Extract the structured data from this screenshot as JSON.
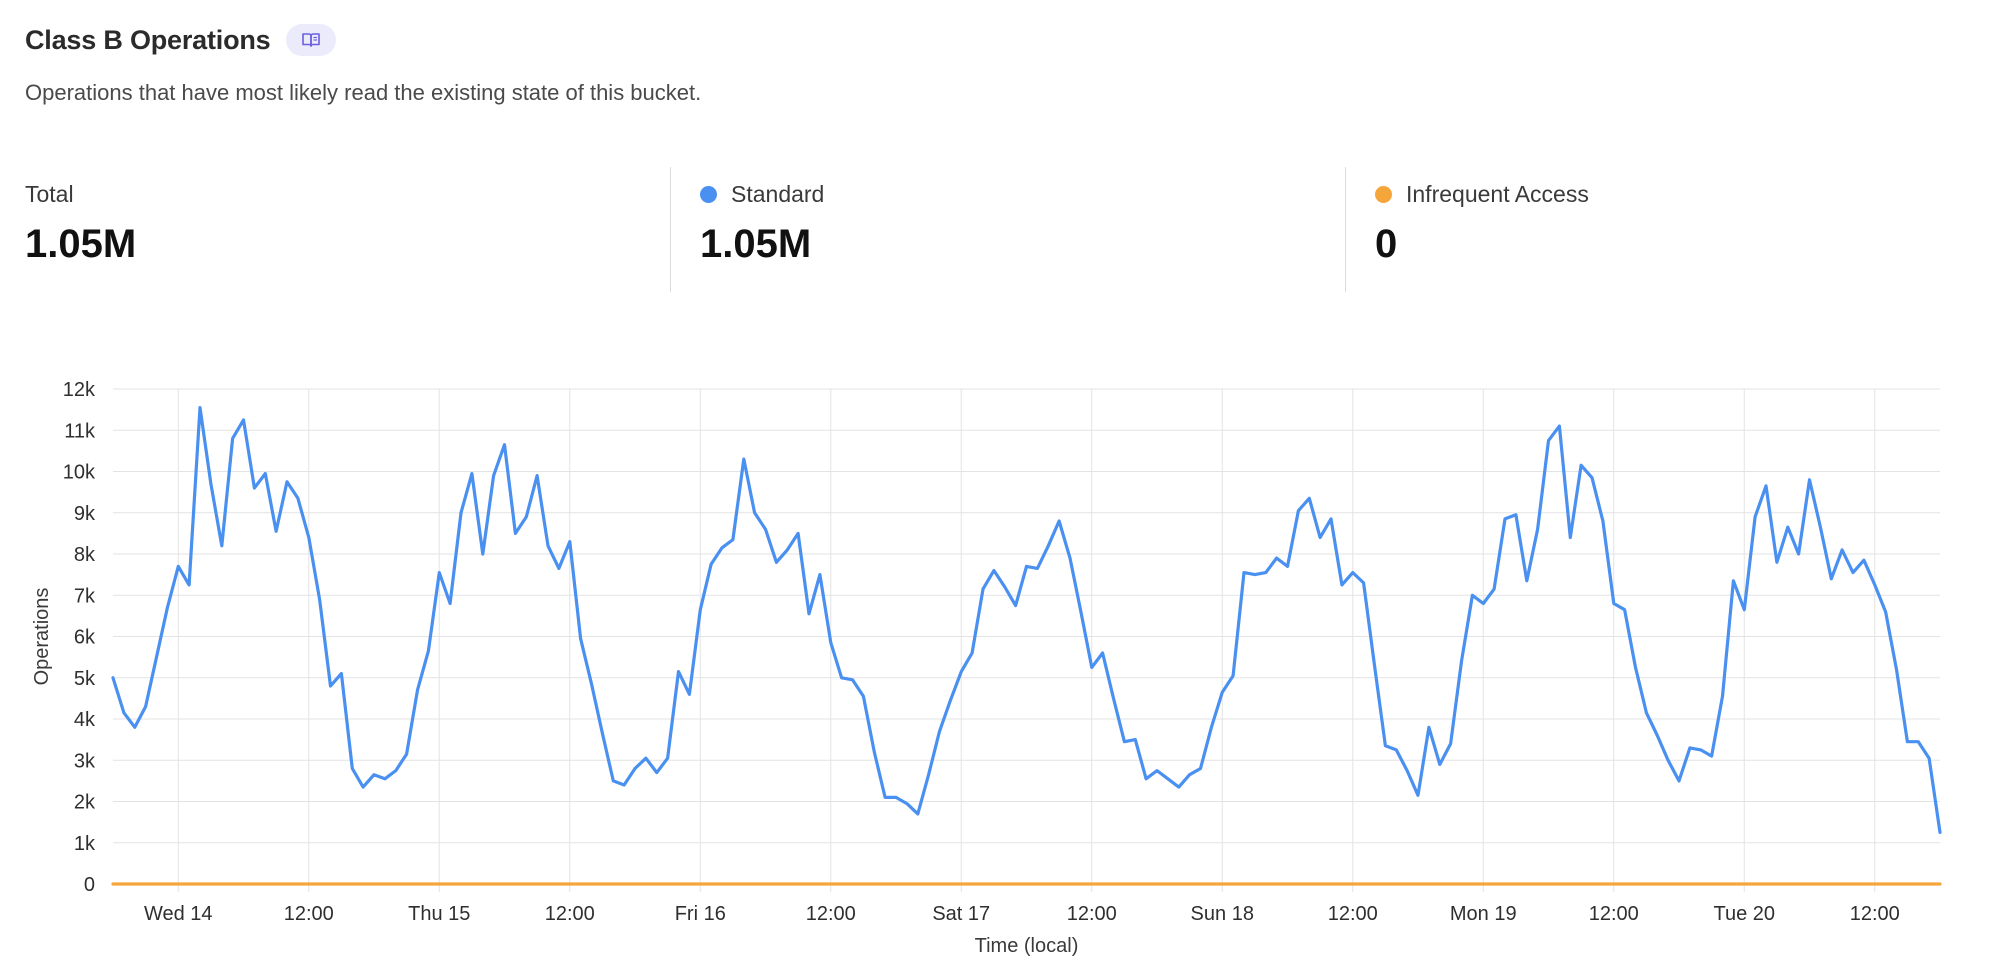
{
  "header": {
    "title": "Class B Operations",
    "docs_icon": "book-icon",
    "subtitle": "Operations that have most likely read the existing state of this bucket."
  },
  "stats": [
    {
      "label": "Total",
      "value": "1.05M",
      "color": ""
    },
    {
      "label": "Standard",
      "value": "1.05M",
      "color": "#4a90f0"
    },
    {
      "label": "Infrequent Access",
      "value": "0",
      "color": "#f5a63a"
    }
  ],
  "chart_data": {
    "type": "line",
    "xlabel": "Time (local)",
    "ylabel": "Operations",
    "ylim": [
      0,
      12000
    ],
    "y_ticks": [
      {
        "value": 0,
        "label": "0"
      },
      {
        "value": 1000,
        "label": "1k"
      },
      {
        "value": 2000,
        "label": "2k"
      },
      {
        "value": 3000,
        "label": "3k"
      },
      {
        "value": 4000,
        "label": "4k"
      },
      {
        "value": 5000,
        "label": "5k"
      },
      {
        "value": 6000,
        "label": "6k"
      },
      {
        "value": 7000,
        "label": "7k"
      },
      {
        "value": 8000,
        "label": "8k"
      },
      {
        "value": 9000,
        "label": "9k"
      },
      {
        "value": 10000,
        "label": "10k"
      },
      {
        "value": 11000,
        "label": "11k"
      },
      {
        "value": 12000,
        "label": "12k"
      }
    ],
    "x_unit": "hours since Wed 14 00:00",
    "xlim": [
      -6,
      162
    ],
    "x_ticks": [
      {
        "value": 0,
        "label": "Wed 14"
      },
      {
        "value": 12,
        "label": "12:00"
      },
      {
        "value": 24,
        "label": "Thu 15"
      },
      {
        "value": 36,
        "label": "12:00"
      },
      {
        "value": 48,
        "label": "Fri 16"
      },
      {
        "value": 60,
        "label": "12:00"
      },
      {
        "value": 72,
        "label": "Sat 17"
      },
      {
        "value": 84,
        "label": "12:00"
      },
      {
        "value": 96,
        "label": "Sun 18"
      },
      {
        "value": 108,
        "label": "12:00"
      },
      {
        "value": 120,
        "label": "Mon 19"
      },
      {
        "value": 132,
        "label": "12:00"
      },
      {
        "value": 144,
        "label": "Tue 20"
      },
      {
        "value": 156,
        "label": "12:00"
      }
    ],
    "grid": true,
    "series": [
      {
        "name": "Standard",
        "color": "#4a90f0",
        "x": [
          -6,
          -5,
          -4,
          -3,
          -2,
          -1,
          0,
          1,
          2,
          3,
          4,
          5,
          6,
          7,
          8,
          9,
          10,
          11,
          12,
          13,
          14,
          15,
          16,
          17,
          18,
          19,
          20,
          21,
          22,
          23,
          24,
          25,
          26,
          27,
          28,
          29,
          30,
          31,
          32,
          33,
          34,
          35,
          36,
          37,
          38,
          39,
          40,
          41,
          42,
          43,
          44,
          45,
          46,
          47,
          48,
          49,
          50,
          51,
          52,
          53,
          54,
          55,
          56,
          57,
          58,
          59,
          60,
          61,
          62,
          63,
          64,
          65,
          66,
          67,
          68,
          69,
          70,
          71,
          72,
          73,
          74,
          75,
          76,
          77,
          78,
          79,
          80,
          81,
          82,
          83,
          84,
          85,
          86,
          87,
          88,
          89,
          90,
          91,
          92,
          93,
          94,
          95,
          96,
          97,
          98,
          99,
          100,
          101,
          102,
          103,
          104,
          105,
          106,
          107,
          108,
          109,
          110,
          111,
          112,
          113,
          114,
          115,
          116,
          117,
          118,
          119,
          120,
          121,
          122,
          123,
          124,
          125,
          126,
          127,
          128,
          129,
          130,
          131,
          132,
          133,
          134,
          135,
          136,
          137,
          138,
          139,
          140,
          141,
          142,
          143,
          144,
          145,
          146,
          147,
          148,
          149,
          150,
          151,
          152,
          153,
          154,
          155,
          156,
          157,
          158,
          159,
          160,
          161,
          162
        ],
        "values": [
          5000,
          4150,
          3800,
          4300,
          5500,
          6700,
          7700,
          7250,
          11550,
          9700,
          8200,
          10800,
          11250,
          9600,
          9950,
          8550,
          9750,
          9350,
          8400,
          6900,
          4800,
          5100,
          2800,
          2350,
          2650,
          2550,
          2750,
          3150,
          4700,
          5650,
          7550,
          6800,
          9000,
          9950,
          8000,
          9900,
          10650,
          8500,
          8900,
          9900,
          8200,
          7650,
          8300,
          5950,
          4850,
          3650,
          2500,
          2400,
          2800,
          3050,
          2700,
          3050,
          5150,
          4600,
          6650,
          7750,
          8150,
          8350,
          10300,
          9000,
          8600,
          7800,
          8100,
          8500,
          6550,
          7500,
          5850,
          5000,
          4950,
          4550,
          3200,
          2100,
          2100,
          1950,
          1700,
          2650,
          3700,
          4450,
          5150,
          5600,
          7150,
          7600,
          7200,
          6750,
          7700,
          7650,
          8200,
          8800,
          7900,
          6600,
          5250,
          5600,
          4500,
          3450,
          3500,
          2550,
          2750,
          2550,
          2350,
          2650,
          2800,
          3800,
          4650,
          5050,
          7550,
          7500,
          7550,
          7900,
          7700,
          9050,
          9350,
          8400,
          8850,
          7250,
          7550,
          7300,
          5300,
          3350,
          3250,
          2750,
          2150,
          3800,
          2900,
          3400,
          5400,
          7000,
          6800,
          7150,
          8850,
          8950,
          7350,
          8600,
          10750,
          11100,
          8400,
          10150,
          9850,
          8800,
          6800,
          6650,
          5250,
          4150,
          3600,
          3000,
          2500,
          3300,
          3250,
          3100,
          4550,
          7350,
          6650,
          8900,
          9650,
          7800,
          8650,
          8000,
          9800,
          8650,
          7400,
          8100,
          7550,
          7850,
          7250,
          6600,
          5200,
          3450,
          3450,
          3050,
          1250
        ]
      },
      {
        "name": "Infrequent Access",
        "color": "#f5a63a",
        "x": [
          -6,
          162
        ],
        "values": [
          0,
          0
        ]
      }
    ]
  }
}
